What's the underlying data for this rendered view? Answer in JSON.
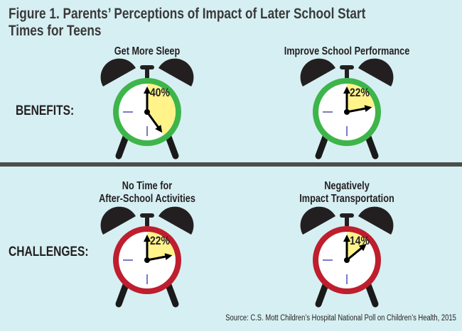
{
  "title_line1": "Figure 1. Parents’ Perceptions of Impact of Later School Start",
  "title_line2": "Times for Teens",
  "benefits_label": "BENEFITS:",
  "challenges_label": "CHALLENGES:",
  "source": "Source: C.S. Mott Children’s Hospital National Poll on Children’s Health, 2015",
  "colors": {
    "background": "#d6eff3",
    "benefit_ring": "#3db54a",
    "challenge_ring": "#be1e2d",
    "wedge": "#fff38a",
    "divider": "#4d4d4d",
    "tick": "#7b7bc4"
  },
  "chart_data": {
    "type": "pie",
    "items": [
      {
        "group": "BENEFITS",
        "label_lines": [
          "Get More Sleep"
        ],
        "value": 40,
        "label": "40%"
      },
      {
        "group": "BENEFITS",
        "label_lines": [
          "Improve School Performance"
        ],
        "value": 22,
        "label": "22%"
      },
      {
        "group": "CHALLENGES",
        "label_lines": [
          "No Time for",
          "After-School Activities"
        ],
        "value": 22,
        "label": "22%"
      },
      {
        "group": "CHALLENGES",
        "label_lines": [
          "Negatively",
          "Impact Transportation"
        ],
        "value": 14,
        "label": "14%"
      }
    ]
  }
}
